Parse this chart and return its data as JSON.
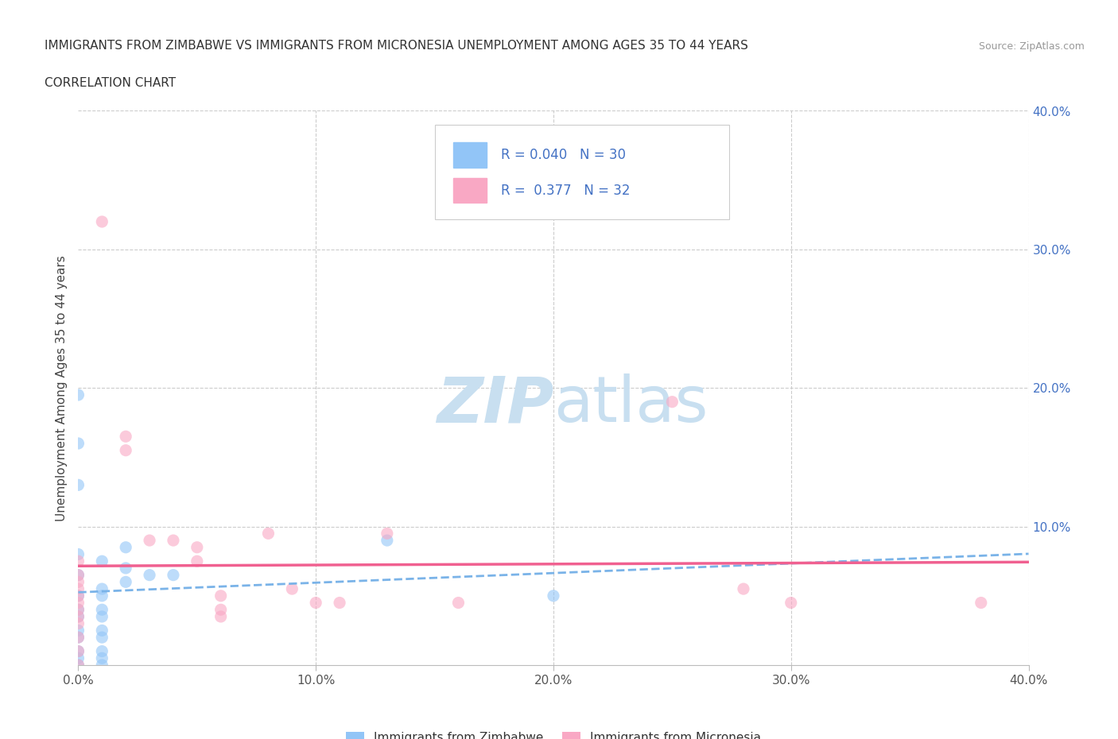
{
  "title_line1": "IMMIGRANTS FROM ZIMBABWE VS IMMIGRANTS FROM MICRONESIA UNEMPLOYMENT AMONG AGES 35 TO 44 YEARS",
  "title_line2": "CORRELATION CHART",
  "source_text": "Source: ZipAtlas.com",
  "ylabel": "Unemployment Among Ages 35 to 44 years",
  "xlim": [
    0.0,
    0.4
  ],
  "ylim": [
    0.0,
    0.4
  ],
  "xtick_labels": [
    "0.0%",
    "",
    "10.0%",
    "",
    "20.0%",
    "",
    "30.0%",
    "",
    "40.0%"
  ],
  "xtick_values": [
    0.0,
    0.05,
    0.1,
    0.15,
    0.2,
    0.25,
    0.3,
    0.35,
    0.4
  ],
  "ytick_labels": [
    "10.0%",
    "20.0%",
    "30.0%",
    "40.0%"
  ],
  "ytick_values": [
    0.1,
    0.2,
    0.3,
    0.4
  ],
  "zimbabwe_color": "#92c5f7",
  "micronesia_color": "#f9a8c4",
  "zimbabwe_line_color": "#7ab3e8",
  "micronesia_line_color": "#f06090",
  "zimbabwe_R": 0.04,
  "zimbabwe_N": 30,
  "micronesia_R": 0.377,
  "micronesia_N": 32,
  "legend_label_zimbabwe": "Immigrants from Zimbabwe",
  "legend_label_micronesia": "Immigrants from Micronesia",
  "watermark_ZIP_color": "#c8dff0",
  "watermark_atlas_color": "#c8dff0",
  "legend_R_N_color": "#4472c4",
  "zimbabwe_scatter": [
    [
      0.0,
      0.195
    ],
    [
      0.0,
      0.16
    ],
    [
      0.0,
      0.13
    ],
    [
      0.0,
      0.08
    ],
    [
      0.0,
      0.065
    ],
    [
      0.0,
      0.05
    ],
    [
      0.0,
      0.04
    ],
    [
      0.0,
      0.035
    ],
    [
      0.0,
      0.025
    ],
    [
      0.0,
      0.02
    ],
    [
      0.0,
      0.01
    ],
    [
      0.0,
      0.005
    ],
    [
      0.0,
      0.0
    ],
    [
      0.01,
      0.075
    ],
    [
      0.01,
      0.055
    ],
    [
      0.01,
      0.05
    ],
    [
      0.01,
      0.04
    ],
    [
      0.01,
      0.035
    ],
    [
      0.01,
      0.025
    ],
    [
      0.01,
      0.02
    ],
    [
      0.01,
      0.01
    ],
    [
      0.01,
      0.005
    ],
    [
      0.01,
      0.0
    ],
    [
      0.02,
      0.085
    ],
    [
      0.02,
      0.07
    ],
    [
      0.02,
      0.06
    ],
    [
      0.03,
      0.065
    ],
    [
      0.04,
      0.065
    ],
    [
      0.13,
      0.09
    ],
    [
      0.2,
      0.05
    ]
  ],
  "micronesia_scatter": [
    [
      0.0,
      0.075
    ],
    [
      0.0,
      0.065
    ],
    [
      0.0,
      0.06
    ],
    [
      0.0,
      0.055
    ],
    [
      0.0,
      0.05
    ],
    [
      0.0,
      0.045
    ],
    [
      0.0,
      0.04
    ],
    [
      0.0,
      0.035
    ],
    [
      0.0,
      0.03
    ],
    [
      0.0,
      0.02
    ],
    [
      0.0,
      0.01
    ],
    [
      0.0,
      0.0
    ],
    [
      0.01,
      0.32
    ],
    [
      0.02,
      0.165
    ],
    [
      0.02,
      0.155
    ],
    [
      0.03,
      0.09
    ],
    [
      0.04,
      0.09
    ],
    [
      0.05,
      0.085
    ],
    [
      0.05,
      0.075
    ],
    [
      0.06,
      0.05
    ],
    [
      0.06,
      0.04
    ],
    [
      0.06,
      0.035
    ],
    [
      0.08,
      0.095
    ],
    [
      0.09,
      0.055
    ],
    [
      0.1,
      0.045
    ],
    [
      0.11,
      0.045
    ],
    [
      0.13,
      0.095
    ],
    [
      0.16,
      0.045
    ],
    [
      0.25,
      0.19
    ],
    [
      0.28,
      0.055
    ],
    [
      0.3,
      0.045
    ],
    [
      0.38,
      0.045
    ]
  ]
}
